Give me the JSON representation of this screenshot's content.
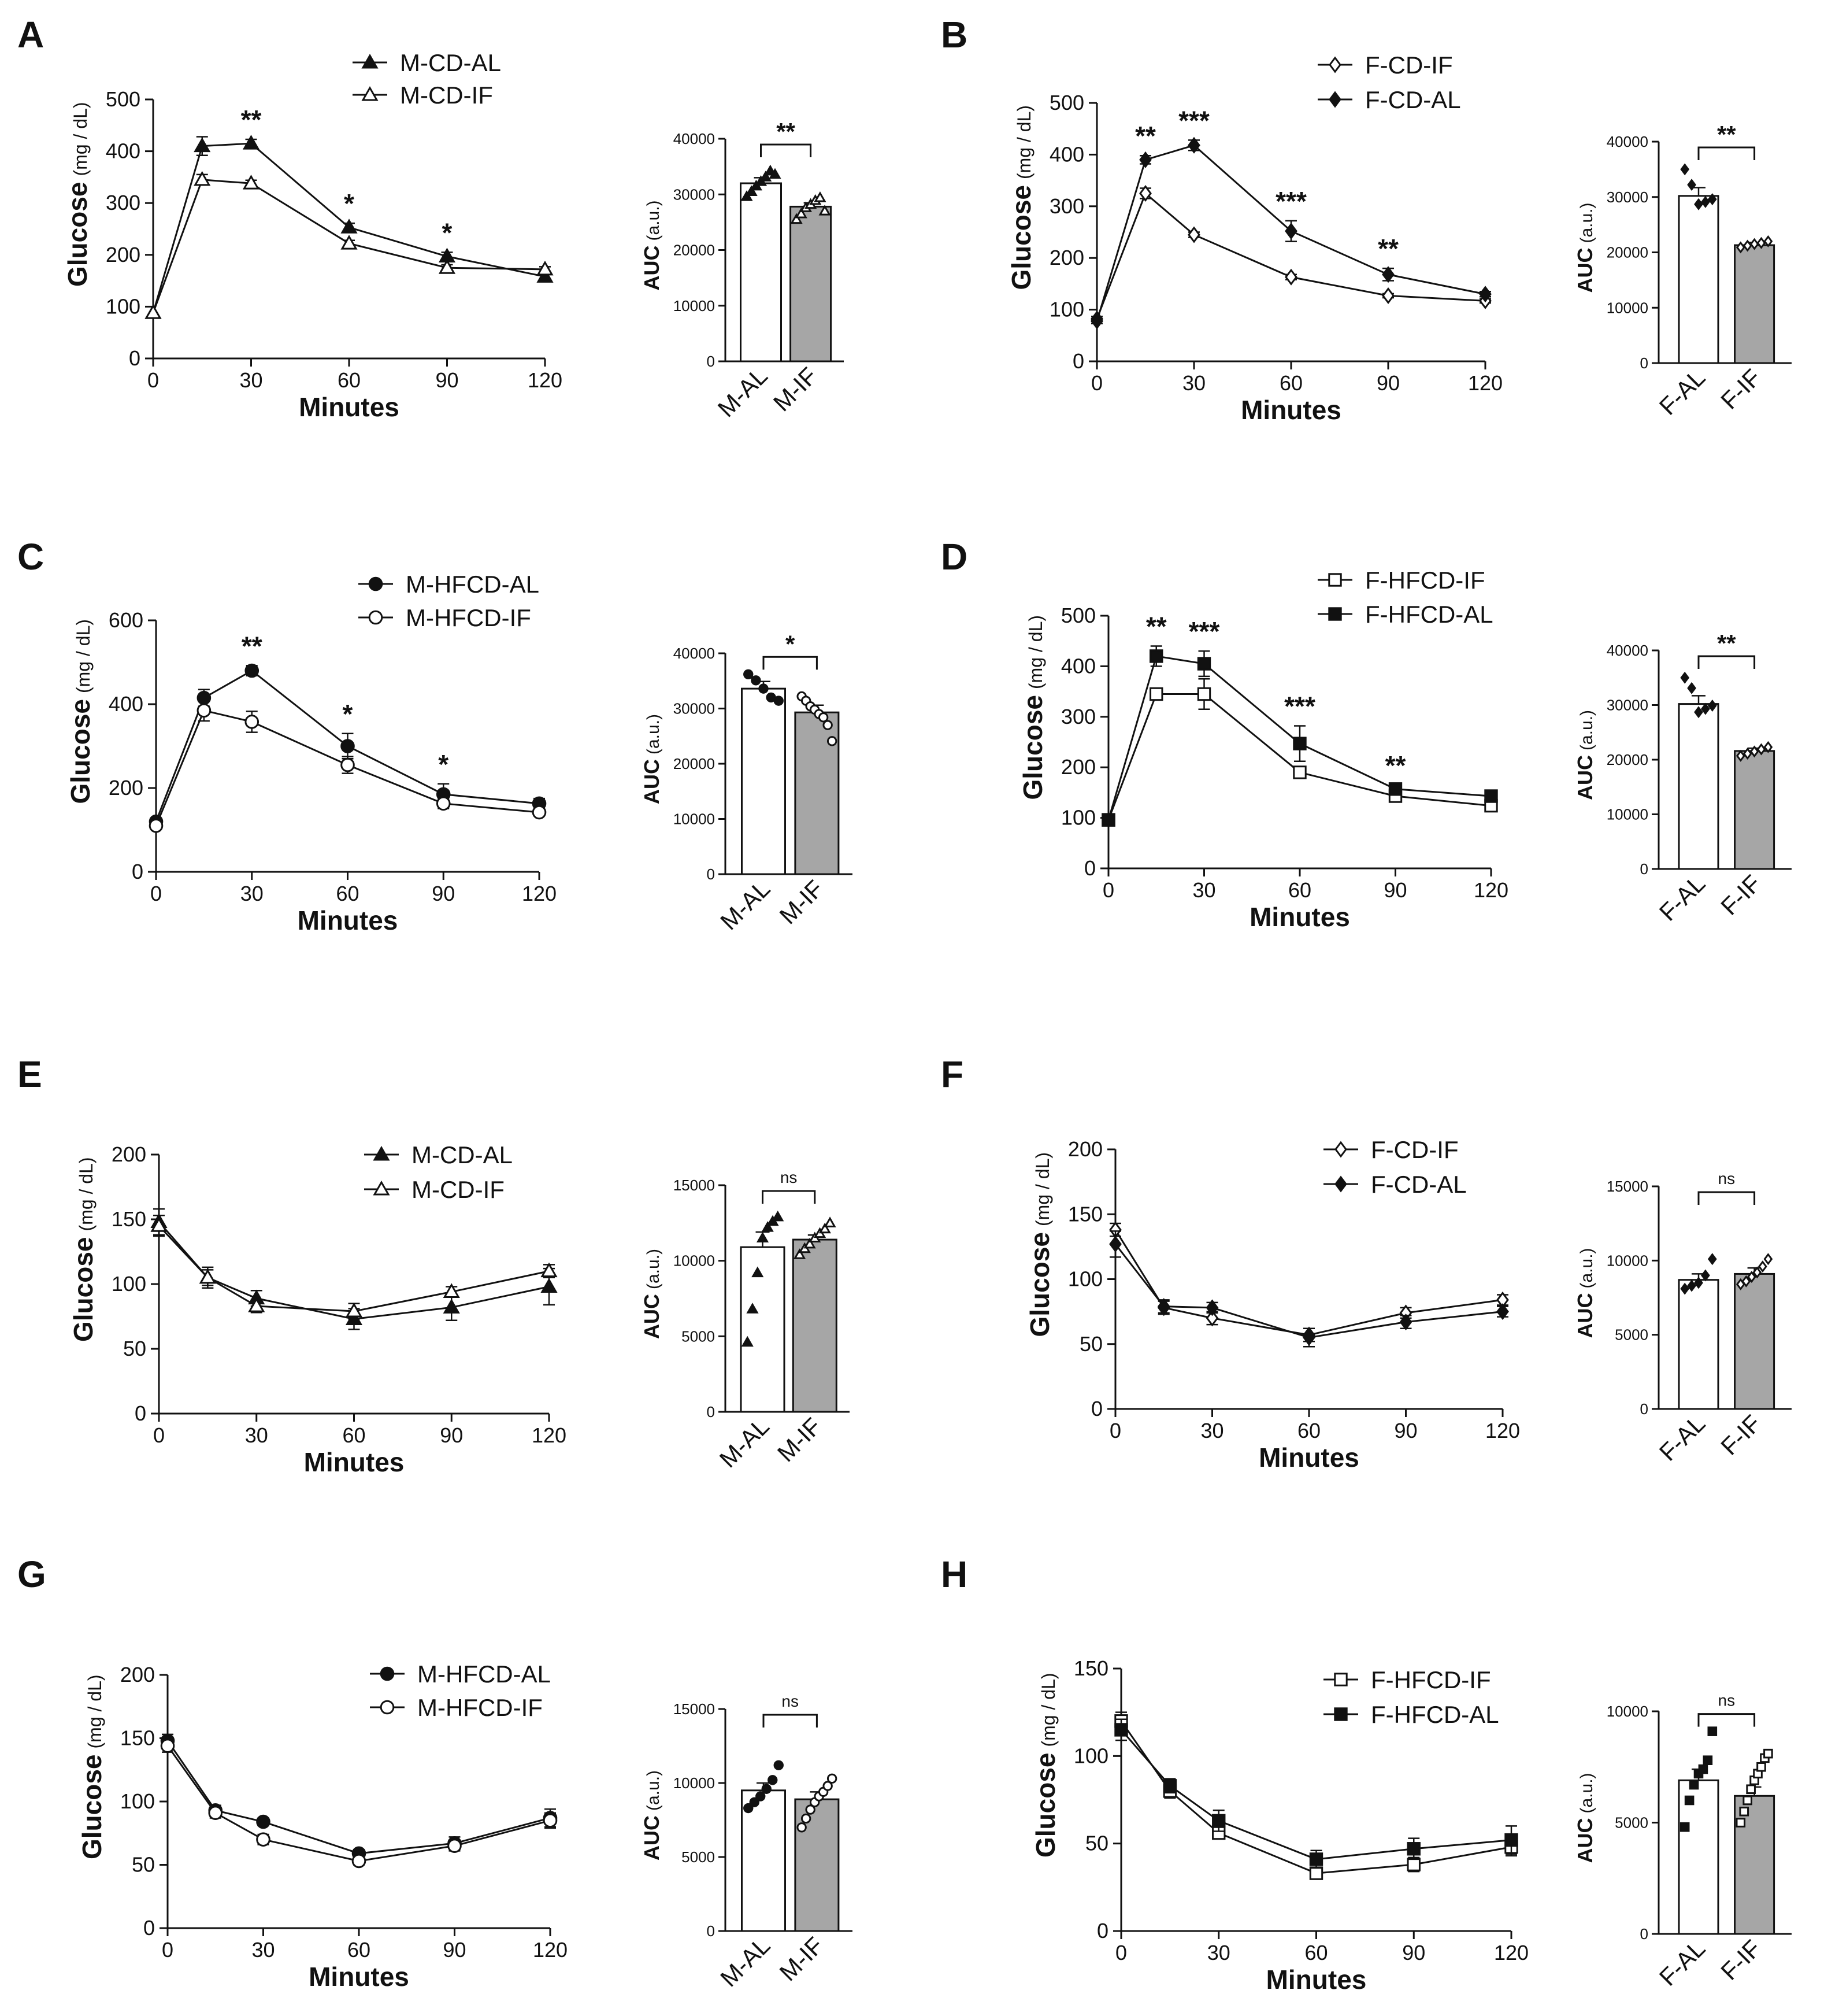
{
  "figure": {
    "units": {
      "glucose": "(mg / dL)",
      "auc": "(a.u.)"
    },
    "glucose_word": "Glucose",
    "auc_word": "AUC"
  },
  "chart_data": [
    {
      "panel": "A",
      "type": "line",
      "xlabel": "Minutes",
      "ylabel": "Glucose (mg / dL)",
      "xlim": [
        0,
        120
      ],
      "xticks": [
        0,
        30,
        60,
        90,
        120
      ],
      "ylim": [
        0,
        500
      ],
      "yticks": [
        0,
        100,
        200,
        300,
        400,
        500
      ],
      "legend_position": "top-center",
      "x": [
        0,
        15,
        30,
        60,
        90,
        120
      ],
      "series": [
        {
          "name": "M-CD-AL",
          "marker": "triangle",
          "filled": true,
          "values": [
            88,
            410,
            415,
            253,
            197,
            158
          ],
          "errors": [
            0,
            18,
            8,
            8,
            8,
            6
          ]
        },
        {
          "name": "M-CD-IF",
          "marker": "triangle",
          "filled": false,
          "values": [
            88,
            345,
            338,
            222,
            175,
            172
          ],
          "errors": [
            0,
            10,
            6,
            6,
            6,
            5
          ]
        }
      ],
      "significance": [
        {
          "x": 30,
          "label": "**"
        },
        {
          "x": 60,
          "label": "*"
        },
        {
          "x": 90,
          "label": "*"
        }
      ],
      "auc": {
        "ylabel": "AUC (a.u.)",
        "ylim": [
          0,
          40000
        ],
        "yticks": [
          0,
          10000,
          20000,
          30000,
          40000
        ],
        "categories": [
          "M-AL",
          "M-IF"
        ],
        "values": [
          32000,
          27800
        ],
        "errors": [
          1000,
          700
        ],
        "points": [
          [
            29600,
            30500,
            31500,
            32300,
            33100,
            34200,
            33600
          ],
          [
            25500,
            26500,
            27600,
            28200,
            28900,
            29400,
            27000
          ]
        ],
        "marker": "triangle",
        "significance": "**"
      }
    },
    {
      "panel": "B",
      "type": "line",
      "xlabel": "Minutes",
      "ylabel": "Glucose (mg / dL)",
      "xlim": [
        0,
        120
      ],
      "xticks": [
        0,
        30,
        60,
        90,
        120
      ],
      "ylim": [
        0,
        500
      ],
      "yticks": [
        0,
        100,
        200,
        300,
        400,
        500
      ],
      "legend_position": "top-center",
      "x": [
        0,
        15,
        30,
        60,
        90,
        120
      ],
      "series": [
        {
          "name": "F-CD-IF",
          "marker": "diamond",
          "filled": false,
          "values": [
            82,
            325,
            245,
            163,
            127,
            117
          ],
          "errors": [
            5,
            10,
            5,
            5,
            4,
            4
          ]
        },
        {
          "name": "F-CD-AL",
          "marker": "diamond",
          "filled": true,
          "values": [
            78,
            390,
            418,
            252,
            168,
            130
          ],
          "errors": [
            5,
            8,
            10,
            20,
            12,
            5
          ]
        }
      ],
      "significance": [
        {
          "x": 15,
          "label": "**"
        },
        {
          "x": 30,
          "label": "***"
        },
        {
          "x": 60,
          "label": "***"
        },
        {
          "x": 90,
          "label": "**"
        }
      ],
      "auc": {
        "ylabel": "AUC (a.u.)",
        "ylim": [
          0,
          40000
        ],
        "yticks": [
          0,
          10000,
          20000,
          30000,
          40000
        ],
        "categories": [
          "F-AL",
          "F-IF"
        ],
        "values": [
          30200,
          21300
        ],
        "errors": [
          1500,
          500
        ],
        "points": [
          [
            35000,
            32200,
            28700,
            29100,
            29600
          ],
          [
            20900,
            21200,
            21500,
            21700,
            22000
          ]
        ],
        "marker": "diamond",
        "significance": "**"
      }
    },
    {
      "panel": "C",
      "type": "line",
      "xlabel": "Minutes",
      "ylabel": "Glucose (mg / dL)",
      "xlim": [
        0,
        120
      ],
      "xticks": [
        0,
        30,
        60,
        90,
        120
      ],
      "ylim": [
        0,
        600
      ],
      "yticks": [
        0,
        200,
        400,
        600
      ],
      "legend_position": "top-center",
      "x": [
        0,
        15,
        30,
        60,
        90,
        120
      ],
      "series": [
        {
          "name": "M-HFCD-AL",
          "marker": "circle",
          "filled": true,
          "values": [
            120,
            415,
            480,
            300,
            185,
            163
          ],
          "errors": [
            8,
            20,
            12,
            30,
            25,
            12
          ]
        },
        {
          "name": "M-HFCD-IF",
          "marker": "circle",
          "filled": false,
          "values": [
            110,
            385,
            358,
            255,
            163,
            142
          ],
          "errors": [
            8,
            25,
            25,
            20,
            12,
            8
          ]
        }
      ],
      "significance": [
        {
          "x": 30,
          "label": "**"
        },
        {
          "x": 60,
          "label": "*"
        },
        {
          "x": 90,
          "label": "*"
        }
      ],
      "auc": {
        "ylabel": "AUC (a.u.)",
        "ylim": [
          0,
          40000
        ],
        "yticks": [
          0,
          10000,
          20000,
          30000,
          40000
        ],
        "categories": [
          "M-AL",
          "M-IF"
        ],
        "values": [
          33600,
          29300
        ],
        "errors": [
          1300,
          1300
        ],
        "points": [
          [
            36200,
            35100,
            33600,
            32000,
            31400
          ],
          [
            32200,
            31400,
            30400,
            29800,
            29000,
            28400,
            27000,
            24100
          ]
        ],
        "marker": "circle",
        "significance": "*"
      }
    },
    {
      "panel": "D",
      "type": "line",
      "xlabel": "Minutes",
      "ylabel": "Glucose (mg / dL)",
      "xlim": [
        0,
        120
      ],
      "xticks": [
        0,
        30,
        60,
        90,
        120
      ],
      "ylim": [
        0,
        500
      ],
      "yticks": [
        0,
        100,
        200,
        300,
        400,
        500
      ],
      "legend_position": "top-center",
      "x": [
        0,
        15,
        30,
        60,
        90,
        120
      ],
      "series": [
        {
          "name": "F-HFCD-IF",
          "marker": "square",
          "filled": false,
          "values": [
            96,
            345,
            345,
            190,
            143,
            124
          ],
          "errors": [
            6,
            10,
            30,
            8,
            6,
            6
          ]
        },
        {
          "name": "F-HFCD-AL",
          "marker": "square",
          "filled": true,
          "values": [
            96,
            420,
            405,
            247,
            157,
            143
          ],
          "errors": [
            6,
            20,
            25,
            35,
            8,
            6
          ]
        }
      ],
      "significance": [
        {
          "x": 15,
          "label": "**"
        },
        {
          "x": 30,
          "label": "***"
        },
        {
          "x": 60,
          "label": "***"
        },
        {
          "x": 90,
          "label": "**"
        }
      ],
      "auc": {
        "ylabel": "AUC (a.u.)",
        "ylim": [
          0,
          40000
        ],
        "yticks": [
          0,
          10000,
          20000,
          30000,
          40000
        ],
        "categories": [
          "F-AL",
          "F-IF"
        ],
        "values": [
          30200,
          21600
        ],
        "errors": [
          1500,
          500
        ],
        "points": [
          [
            35000,
            33100,
            28700,
            29300,
            29900
          ],
          [
            20700,
            21100,
            21500,
            21900,
            22300
          ]
        ],
        "marker": "diamond",
        "significance": "**"
      }
    },
    {
      "panel": "E",
      "type": "line",
      "xlabel": "Minutes",
      "ylabel": "Glucose (mg / dL)",
      "xlim": [
        0,
        120
      ],
      "xticks": [
        0,
        30,
        60,
        90,
        120
      ],
      "ylim": [
        0,
        200
      ],
      "yticks": [
        0,
        50,
        100,
        150,
        200
      ],
      "legend_position": "top-right",
      "x": [
        0,
        15,
        30,
        60,
        90,
        120
      ],
      "series": [
        {
          "name": "M-CD-AL",
          "marker": "triangle",
          "filled": true,
          "values": [
            148,
            105,
            89,
            73,
            82,
            98
          ],
          "errors": [
            10,
            8,
            6,
            8,
            10,
            14
          ]
        },
        {
          "name": "M-CD-IF",
          "marker": "triangle",
          "filled": false,
          "values": [
            145,
            105,
            83,
            79,
            94,
            110
          ],
          "errors": [
            8,
            6,
            5,
            6,
            4,
            5
          ]
        }
      ],
      "significance": [],
      "auc": {
        "ylabel": "AUC (a.u.)",
        "ylim": [
          0,
          15000
        ],
        "yticks": [
          0,
          5000,
          10000,
          15000
        ],
        "categories": [
          "M-AL",
          "M-IF"
        ],
        "values": [
          10900,
          11400
        ],
        "errors": [
          1000,
          300
        ],
        "points": [
          [
            4600,
            6800,
            9200,
            11500,
            12200,
            12600,
            12900
          ],
          [
            10400,
            10800,
            11100,
            11500,
            11800,
            12100,
            12500
          ]
        ],
        "marker": "triangle",
        "significance": "ns"
      }
    },
    {
      "panel": "F",
      "type": "line",
      "xlabel": "Minutes",
      "ylabel": "Glucose (mg / dL)",
      "xlim": [
        0,
        120
      ],
      "xticks": [
        0,
        30,
        60,
        90,
        120
      ],
      "ylim": [
        0,
        200
      ],
      "yticks": [
        0,
        50,
        100,
        150,
        200
      ],
      "legend_position": "top-right",
      "x": [
        0,
        15,
        30,
        60,
        90,
        120
      ],
      "series": [
        {
          "name": "F-CD-IF",
          "marker": "diamond",
          "filled": false,
          "values": [
            138,
            78,
            70,
            57,
            74,
            84
          ],
          "errors": [
            5,
            5,
            5,
            5,
            4,
            4
          ]
        },
        {
          "name": "F-CD-AL",
          "marker": "diamond",
          "filled": true,
          "values": [
            127,
            79,
            78,
            55,
            67,
            75
          ],
          "errors": [
            10,
            5,
            4,
            7,
            5,
            4
          ]
        }
      ],
      "significance": [],
      "auc": {
        "ylabel": "AUC (a.u.)",
        "ylim": [
          0,
          15000
        ],
        "yticks": [
          0,
          5000,
          10000,
          15000
        ],
        "categories": [
          "F-AL",
          "F-IF"
        ],
        "values": [
          8700,
          9100
        ],
        "errors": [
          400,
          400
        ],
        "points": [
          [
            8100,
            8300,
            8500,
            9000,
            10100
          ],
          [
            8400,
            8600,
            8900,
            9200,
            9600,
            10100
          ]
        ],
        "marker": "diamond",
        "significance": "ns"
      }
    },
    {
      "panel": "G",
      "type": "line",
      "xlabel": "Minutes",
      "ylabel": "Glucose (mg / dL)",
      "xlim": [
        0,
        120
      ],
      "xticks": [
        0,
        30,
        60,
        90,
        120
      ],
      "ylim": [
        0,
        200
      ],
      "yticks": [
        0,
        50,
        100,
        150,
        200
      ],
      "legend_position": "top-right",
      "x": [
        0,
        15,
        30,
        60,
        90,
        120
      ],
      "series": [
        {
          "name": "M-HFCD-AL",
          "marker": "circle",
          "filled": true,
          "values": [
            148,
            93,
            84,
            59,
            67,
            87
          ],
          "errors": [
            5,
            4,
            3,
            3,
            5,
            7
          ]
        },
        {
          "name": "M-HFCD-IF",
          "marker": "circle",
          "filled": false,
          "values": [
            144,
            91,
            70,
            53,
            65,
            85
          ],
          "errors": [
            5,
            4,
            4,
            3,
            4,
            6
          ]
        }
      ],
      "significance": [],
      "auc": {
        "ylabel": "AUC (a.u.)",
        "ylim": [
          0,
          15000
        ],
        "yticks": [
          0,
          5000,
          10000,
          15000
        ],
        "categories": [
          "M-AL",
          "M-IF"
        ],
        "values": [
          9500,
          8900
        ],
        "errors": [
          500,
          500
        ],
        "points": [
          [
            8300,
            8700,
            9100,
            9600,
            10200,
            11200
          ],
          [
            7000,
            7600,
            8200,
            8700,
            9100,
            9400,
            9800,
            10300
          ]
        ],
        "marker": "circle",
        "significance": "ns"
      }
    },
    {
      "panel": "H",
      "type": "line",
      "xlabel": "Minutes",
      "ylabel": "Glucose (mg / dL)",
      "xlim": [
        0,
        120
      ],
      "xticks": [
        0,
        30,
        60,
        90,
        120
      ],
      "ylim": [
        0,
        150
      ],
      "yticks": [
        0,
        50,
        100,
        150
      ],
      "legend_position": "top-right",
      "x": [
        0,
        15,
        30,
        60,
        90,
        120
      ],
      "series": [
        {
          "name": "F-HFCD-IF",
          "marker": "square",
          "filled": false,
          "values": [
            120,
            80,
            56,
            33,
            38,
            48
          ],
          "errors": [
            5,
            4,
            3,
            3,
            4,
            5
          ]
        },
        {
          "name": "F-HFCD-AL",
          "marker": "square",
          "filled": true,
          "values": [
            115,
            83,
            63,
            41,
            47,
            52
          ],
          "errors": [
            6,
            4,
            6,
            5,
            6,
            8
          ]
        }
      ],
      "significance": [],
      "auc": {
        "ylabel": "AUC (a.u.)",
        "ylim": [
          0,
          10000
        ],
        "yticks": [
          0,
          5000,
          10000
        ],
        "categories": [
          "F-AL",
          "F-IF"
        ],
        "values": [
          6900,
          6200
        ],
        "errors": [
          500,
          400
        ],
        "points": [
          [
            4800,
            6000,
            6700,
            7200,
            7400,
            7800,
            9100
          ],
          [
            5000,
            5500,
            6000,
            6500,
            6900,
            7200,
            7500,
            7900,
            8100
          ]
        ],
        "marker": "square",
        "significance": "ns"
      }
    }
  ]
}
